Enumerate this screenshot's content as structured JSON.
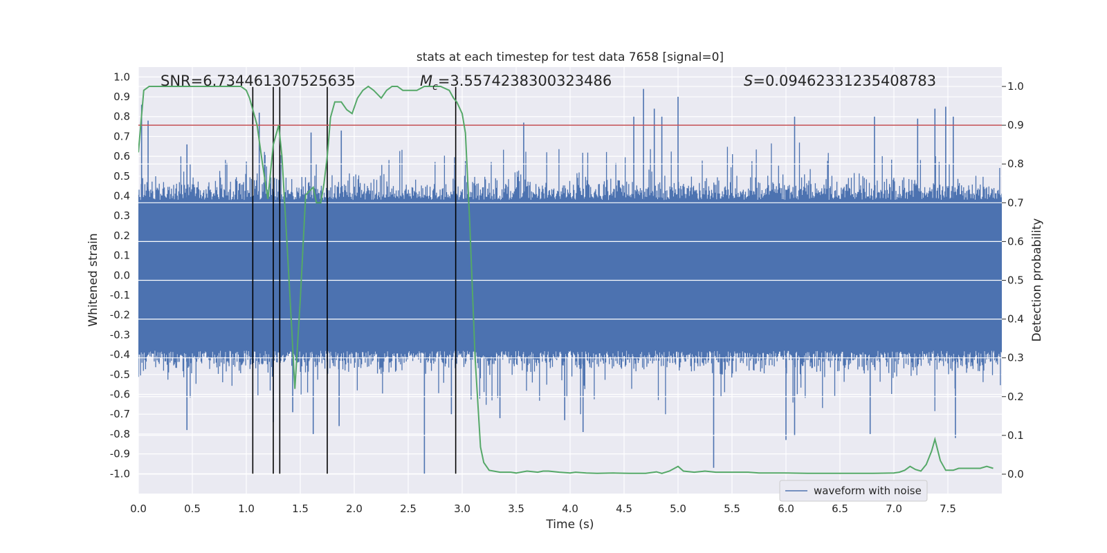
{
  "chart_data": {
    "type": "line",
    "title": "stats at each timestep for test data 7658 [signal=0]",
    "xlabel": "Time (s)",
    "ylabel_left": "Whitened strain",
    "ylabel_right": "Detection probability",
    "xlim": [
      0.0,
      8.0
    ],
    "ylim_left": [
      -1.1,
      1.05
    ],
    "ylim_right": [
      -0.05,
      1.05
    ],
    "x_ticks": [
      "0.0",
      "0.5",
      "1.0",
      "1.5",
      "2.0",
      "2.5",
      "3.0",
      "3.5",
      "4.0",
      "4.5",
      "5.0",
      "5.5",
      "6.0",
      "6.5",
      "7.0",
      "7.5"
    ],
    "y_left_ticks": [
      "1.0",
      "0.9",
      "0.8",
      "0.7",
      "0.6",
      "0.5",
      "0.4",
      "0.3",
      "0.2",
      "0.1",
      "0.0",
      "-0.1",
      "-0.2",
      "-0.3",
      "-0.4",
      "-0.5",
      "-0.6",
      "-0.7",
      "-0.8",
      "-0.9",
      "-1.0"
    ],
    "y_right_ticks": [
      "1.0",
      "0.9",
      "0.8",
      "0.7",
      "0.6",
      "0.5",
      "0.4",
      "0.3",
      "0.2",
      "0.1",
      "0.0"
    ],
    "grid": true,
    "annotations": {
      "snr": "SNR=6.734461307525635",
      "mc_symbol": "M",
      "mc_sub": "c",
      "mc_value": "=3.5574238300323486",
      "s_symbol": "S",
      "s_value": "=0.09462331235408783"
    },
    "threshold": {
      "value": 0.9,
      "axis": "right",
      "color": "#c44e52"
    },
    "vertical_lines": [
      1.06,
      1.25,
      1.31,
      1.75,
      2.94
    ],
    "vertical_line_range": [
      -1.0,
      0.95
    ],
    "series": [
      {
        "name": "waveform with noise",
        "axis": "left",
        "color": "#4c72b0",
        "envelope_typical": 0.38,
        "notable_peaks": [
          {
            "x": 0.03,
            "y": 0.86
          },
          {
            "x": 0.09,
            "y": 0.78
          },
          {
            "x": 0.45,
            "y": 0.66
          },
          {
            "x": 1.12,
            "y": 0.82
          },
          {
            "x": 1.6,
            "y": 0.72
          },
          {
            "x": 1.88,
            "y": 0.73
          },
          {
            "x": 3.57,
            "y": 0.77
          },
          {
            "x": 4.59,
            "y": 0.8
          },
          {
            "x": 4.68,
            "y": 0.94
          },
          {
            "x": 4.78,
            "y": 0.84
          },
          {
            "x": 4.85,
            "y": 0.8
          },
          {
            "x": 5.0,
            "y": 0.9
          },
          {
            "x": 6.08,
            "y": 0.8
          },
          {
            "x": 6.82,
            "y": 0.8
          },
          {
            "x": 7.22,
            "y": 0.79
          },
          {
            "x": 7.38,
            "y": 0.84
          },
          {
            "x": 7.48,
            "y": 0.85
          },
          {
            "x": 7.55,
            "y": 0.8
          }
        ],
        "notable_troughs": [
          {
            "x": 0.45,
            "y": -0.78
          },
          {
            "x": 1.25,
            "y": -0.74
          },
          {
            "x": 1.43,
            "y": -0.69
          },
          {
            "x": 1.62,
            "y": -0.8
          },
          {
            "x": 1.86,
            "y": -0.76
          },
          {
            "x": 2.65,
            "y": -1.0
          },
          {
            "x": 2.9,
            "y": -0.7
          },
          {
            "x": 3.35,
            "y": -0.72
          },
          {
            "x": 3.95,
            "y": -0.73
          },
          {
            "x": 4.12,
            "y": -0.79
          },
          {
            "x": 5.33,
            "y": -0.97
          },
          {
            "x": 6.0,
            "y": -0.83
          },
          {
            "x": 6.08,
            "y": -0.81
          },
          {
            "x": 6.78,
            "y": -0.8
          },
          {
            "x": 7.57,
            "y": -0.82
          }
        ]
      },
      {
        "name": "detection probability",
        "axis": "right",
        "color": "#55a868",
        "x": [
          0.0,
          0.05,
          0.1,
          0.2,
          0.3,
          0.5,
          0.7,
          0.85,
          0.95,
          1.0,
          1.03,
          1.06,
          1.1,
          1.15,
          1.2,
          1.25,
          1.3,
          1.33,
          1.38,
          1.42,
          1.45,
          1.5,
          1.55,
          1.62,
          1.65,
          1.69,
          1.72,
          1.75,
          1.78,
          1.82,
          1.88,
          1.93,
          1.98,
          2.03,
          2.08,
          2.13,
          2.18,
          2.25,
          2.3,
          2.35,
          2.4,
          2.45,
          2.5,
          2.58,
          2.65,
          2.72,
          2.8,
          2.88,
          2.92,
          2.95,
          3.0,
          3.03,
          3.07,
          3.12,
          3.17,
          3.2,
          3.25,
          3.35,
          3.45,
          3.5,
          3.6,
          3.7,
          3.75,
          3.8,
          3.9,
          4.0,
          4.05,
          4.15,
          4.25,
          4.4,
          4.55,
          4.7,
          4.8,
          4.85,
          4.92,
          5.0,
          5.05,
          5.15,
          5.25,
          5.35,
          5.45,
          5.55,
          5.65,
          5.75,
          5.85,
          6.0,
          6.2,
          6.4,
          6.6,
          6.8,
          7.0,
          7.05,
          7.1,
          7.15,
          7.2,
          7.25,
          7.3,
          7.35,
          7.38,
          7.43,
          7.48,
          7.55,
          7.6,
          7.65,
          7.7,
          7.8,
          7.86,
          7.92
        ],
        "y": [
          0.83,
          0.99,
          1.0,
          1.0,
          1.0,
          1.0,
          1.0,
          1.0,
          1.0,
          0.99,
          0.97,
          0.94,
          0.9,
          0.8,
          0.71,
          0.85,
          0.9,
          0.82,
          0.58,
          0.38,
          0.22,
          0.45,
          0.72,
          0.74,
          0.7,
          0.7,
          0.75,
          0.82,
          0.92,
          0.96,
          0.96,
          0.94,
          0.93,
          0.97,
          0.99,
          1.0,
          0.99,
          0.97,
          0.99,
          1.0,
          1.0,
          0.99,
          0.99,
          0.99,
          1.0,
          1.0,
          1.0,
          0.99,
          0.97,
          0.96,
          0.93,
          0.88,
          0.65,
          0.3,
          0.07,
          0.03,
          0.01,
          0.005,
          0.005,
          0.003,
          0.008,
          0.005,
          0.008,
          0.008,
          0.005,
          0.003,
          0.005,
          0.003,
          0.002,
          0.003,
          0.002,
          0.002,
          0.006,
          0.002,
          0.008,
          0.02,
          0.008,
          0.005,
          0.008,
          0.005,
          0.005,
          0.005,
          0.005,
          0.003,
          0.003,
          0.003,
          0.002,
          0.002,
          0.002,
          0.002,
          0.003,
          0.005,
          0.01,
          0.02,
          0.012,
          0.008,
          0.025,
          0.06,
          0.09,
          0.035,
          0.01,
          0.01,
          0.015,
          0.015,
          0.015,
          0.015,
          0.02,
          0.015
        ]
      }
    ],
    "legend": {
      "location": "lower-right",
      "entries": [
        "waveform with noise"
      ]
    }
  }
}
